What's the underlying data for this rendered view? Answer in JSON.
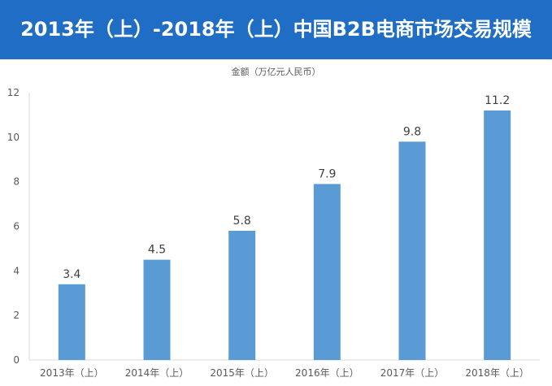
{
  "header": {
    "title": "2013年（上）-2018年（上）中国B2B电商市场交易规模"
  },
  "chart_data": {
    "type": "bar",
    "ylabel": "金额（万亿元人民币）",
    "categories": [
      "2013年（上）",
      "2014年（上）",
      "2015年（上）",
      "2016年（上）",
      "2017年（上）",
      "2018年（上）"
    ],
    "values": [
      3.4,
      4.5,
      5.8,
      7.9,
      9.8,
      11.2
    ],
    "data_labels": [
      "3.4",
      "4.5",
      "5.8",
      "7.9",
      "9.8",
      "11.2"
    ],
    "ylim": [
      0,
      12
    ],
    "yticks": [
      "0",
      "2",
      "4",
      "6",
      "8",
      "10",
      "12"
    ],
    "grid": false,
    "bar_color": "#5b9bd5",
    "banner_color": "#1f6dc5"
  }
}
